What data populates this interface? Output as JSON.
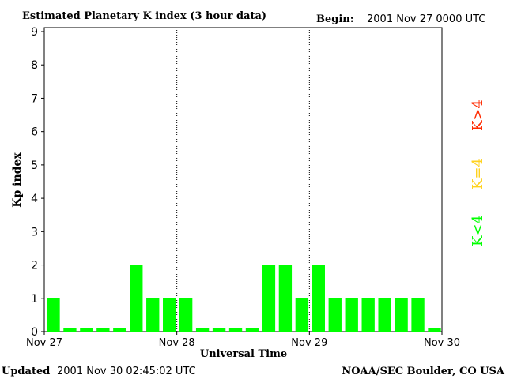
{
  "header": {
    "title": "Estimated Planetary K index (3 hour data)",
    "begin_label": "Begin:",
    "begin_value": "2001 Nov 27 0000 UTC"
  },
  "footer": {
    "updated_label": "Updated",
    "updated_value": "2001 Nov 30 02:45:02 UTC",
    "credit": "NOAA/SEC Boulder, CO USA"
  },
  "legend": [
    {
      "label": "K>4",
      "color": "#ff2a00"
    },
    {
      "label": "K=4",
      "color": "#ffd21f"
    },
    {
      "label": "K<4",
      "color": "#00ff00"
    }
  ],
  "colors": {
    "bar": "#00ff00",
    "axis": "#000000",
    "background": "#ffffff"
  },
  "chart_data": {
    "type": "bar",
    "xlabel": "Universal Time",
    "ylabel": "Kp index",
    "ylim": [
      0,
      9
    ],
    "yticks": [
      0,
      1,
      2,
      3,
      4,
      5,
      6,
      7,
      8,
      9
    ],
    "xticks": [
      "Nov 27",
      "Nov 28",
      "Nov 29",
      "Nov 30"
    ],
    "day_dividers": [
      "Nov 28",
      "Nov 29"
    ],
    "categories": [
      "Nov 27 00",
      "Nov 27 03",
      "Nov 27 06",
      "Nov 27 09",
      "Nov 27 12",
      "Nov 27 15",
      "Nov 27 18",
      "Nov 27 21",
      "Nov 28 00",
      "Nov 28 03",
      "Nov 28 06",
      "Nov 28 09",
      "Nov 28 12",
      "Nov 28 15",
      "Nov 28 18",
      "Nov 28 21",
      "Nov 29 00",
      "Nov 29 03",
      "Nov 29 06",
      "Nov 29 09",
      "Nov 29 12",
      "Nov 29 15",
      "Nov 29 18",
      "Nov 29 21"
    ],
    "values": [
      1,
      0,
      0,
      0,
      0,
      2,
      1,
      1,
      1,
      0,
      0,
      0,
      0,
      2,
      2,
      1,
      2,
      1,
      1,
      1,
      1,
      1,
      1,
      0
    ]
  }
}
